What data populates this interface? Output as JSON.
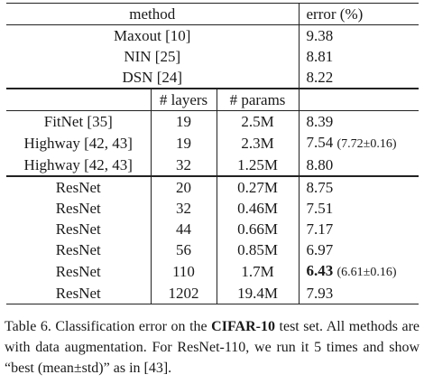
{
  "table": {
    "header": {
      "method": "method",
      "error": "error (%)"
    },
    "top_rows": [
      {
        "method": "Maxout [10]",
        "error": "9.38"
      },
      {
        "method": "NIN [25]",
        "error": "8.81"
      },
      {
        "method": "DSN [24]",
        "error": "8.22"
      }
    ],
    "sub_header": {
      "layers": "# layers",
      "params": "# params"
    },
    "mid_rows": [
      {
        "method": "FitNet [35]",
        "layers": "19",
        "params": "2.5M",
        "error": "8.39",
        "std": ""
      },
      {
        "method": "Highway [42, 43]",
        "layers": "19",
        "params": "2.3M",
        "error": "7.54",
        "std": "(7.72±0.16)"
      },
      {
        "method": "Highway [42, 43]",
        "layers": "32",
        "params": "1.25M",
        "error": "8.80",
        "std": ""
      }
    ],
    "resnet_rows": [
      {
        "method": "ResNet",
        "layers": "20",
        "params": "0.27M",
        "error": "8.75",
        "std": ""
      },
      {
        "method": "ResNet",
        "layers": "32",
        "params": "0.46M",
        "error": "7.51",
        "std": ""
      },
      {
        "method": "ResNet",
        "layers": "44",
        "params": "0.66M",
        "error": "7.17",
        "std": ""
      },
      {
        "method": "ResNet",
        "layers": "56",
        "params": "0.85M",
        "error": "6.97",
        "std": ""
      },
      {
        "method": "ResNet",
        "layers": "110",
        "params": "1.7M",
        "error": "6.43",
        "std": "(6.61±0.16)"
      },
      {
        "method": "ResNet",
        "layers": "1202",
        "params": "19.4M",
        "error": "7.93",
        "std": ""
      }
    ]
  },
  "caption": {
    "part1": "Table 6. Classification error on the ",
    "dataset": "CIFAR-10",
    "part2": " test set. All methods are with data augmentation. For ResNet-110, we run it 5 times and show “best (mean±std)” as in [43]."
  }
}
